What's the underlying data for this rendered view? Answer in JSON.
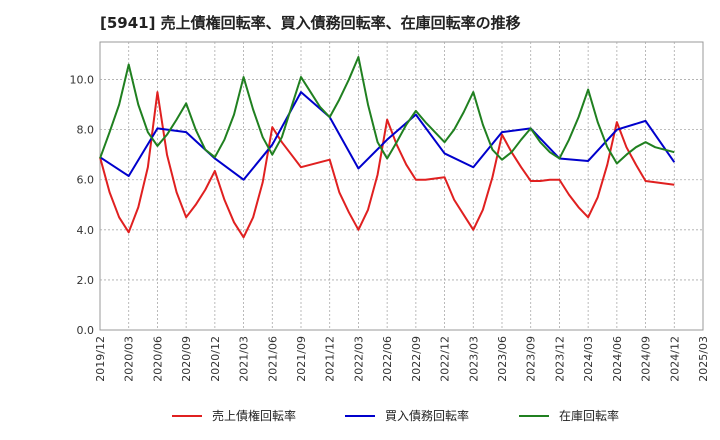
{
  "chart_data": {
    "type": "line",
    "title": "[5941]  売上債権回転率、買入債務回転率、在庫回転率の推移",
    "xlabel": "",
    "ylabel": "",
    "ylim": [
      0,
      11.5
    ],
    "y_ticks": [
      "0.0",
      "2.0",
      "4.0",
      "6.0",
      "8.0",
      "10.0"
    ],
    "x_tick_labels": [
      "2019/12",
      "2020/03",
      "2020/06",
      "2020/09",
      "2020/12",
      "2021/03",
      "2021/06",
      "2021/09",
      "2021/12",
      "2022/03",
      "2022/06",
      "2022/09",
      "2022/12",
      "2023/03",
      "2023/06",
      "2023/09",
      "2023/12",
      "2024/03",
      "2024/06",
      "2024/09",
      "2024/12",
      "2025/03"
    ],
    "grid": true,
    "legend_position": "bottom",
    "series": [
      {
        "name": "売上債権回転率",
        "color": "#e02020",
        "values": [
          6.9,
          5.5,
          4.5,
          3.9,
          4.9,
          6.5,
          9.5,
          7.0,
          5.5,
          4.5,
          5.0,
          5.6,
          6.35,
          5.2,
          4.3,
          3.7,
          4.5,
          5.9,
          8.1,
          7.5,
          7.0,
          6.5,
          6.6,
          6.7,
          6.8,
          5.5,
          4.7,
          4.0,
          4.8,
          6.2,
          8.4,
          7.4,
          6.6,
          6.0,
          6.0,
          6.05,
          6.1,
          5.2,
          4.6,
          4.0,
          4.8,
          6.1,
          7.8,
          7.1,
          6.5,
          5.95,
          5.95,
          6.0,
          6.0,
          5.4,
          4.9,
          4.5,
          5.3,
          6.6,
          8.3,
          7.3,
          6.6,
          5.95,
          5.9,
          5.85,
          5.8
        ],
        "x_start_index": 0
      },
      {
        "name": "買入債務回転率",
        "color": "#0000cc",
        "values": [
          6.9,
          6.15,
          8.05,
          7.9,
          6.85,
          6.0,
          7.4,
          9.5,
          8.5,
          6.45,
          7.6,
          8.6,
          7.05,
          6.5,
          7.9,
          8.05,
          6.85,
          6.75,
          8.0,
          8.35,
          6.7
        ],
        "x_start_index": 0,
        "x_step": 3
      },
      {
        "name": "在庫回転率",
        "color": "#208020",
        "values": [
          6.85,
          7.9,
          9.0,
          10.6,
          9.0,
          7.9,
          7.35,
          7.8,
          8.4,
          9.05,
          8.0,
          7.2,
          6.9,
          7.6,
          8.6,
          10.1,
          8.8,
          7.7,
          7.0,
          7.7,
          8.9,
          10.1,
          9.5,
          8.9,
          8.5,
          9.2,
          10.0,
          10.9,
          9.0,
          7.5,
          6.85,
          7.5,
          8.2,
          8.75,
          8.3,
          7.9,
          7.5,
          8.0,
          8.7,
          9.5,
          8.2,
          7.2,
          6.8,
          7.1,
          7.6,
          8.05,
          7.5,
          7.1,
          6.85,
          7.6,
          8.5,
          9.6,
          8.3,
          7.3,
          6.65,
          7.0,
          7.3,
          7.5,
          7.3,
          7.2,
          7.1
        ],
        "x_start_index": 0
      }
    ]
  }
}
